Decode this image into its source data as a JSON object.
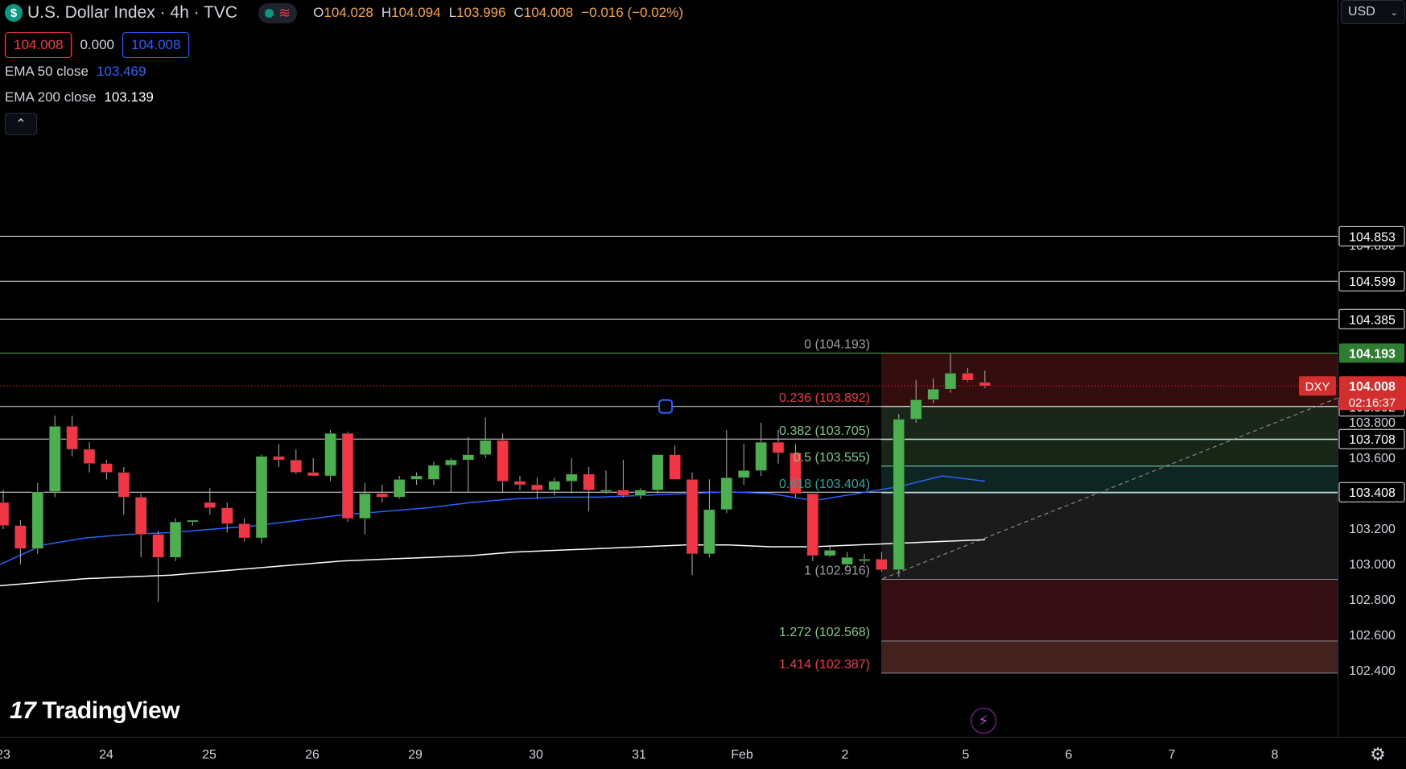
{
  "header": {
    "symbol_icon": "$",
    "title": "U.S. Dollar Index · 4h · TVC",
    "ohlc": {
      "o_label": "O",
      "o": "104.028",
      "h_label": "H",
      "h": "104.094",
      "l_label": "L",
      "l": "103.996",
      "c_label": "C",
      "c": "104.008",
      "change": "−0.016 (−0.02%)"
    }
  },
  "trade": {
    "sell": "104.008",
    "spread": "0.000",
    "buy": "104.008"
  },
  "indicators": [
    {
      "label": "EMA 50 close",
      "value": "103.469",
      "color": "#2962ff"
    },
    {
      "label": "EMA 200 close",
      "value": "103.139",
      "color": "#ffffff"
    }
  ],
  "collapse_icon": "chevron-up-icon",
  "currency": "USD",
  "logo_text": "TradingView",
  "symbol_tag": "DXY",
  "countdown": "02:16:37",
  "colors": {
    "up": "#4caf50",
    "down": "#f23645",
    "ema50": "#2962ff",
    "ema200": "#ffffff",
    "fib_red": "#f23645",
    "fib_green": "#81c784"
  },
  "chart_data": {
    "type": "candlestick",
    "title": "U.S. Dollar Index · 4h · TVC",
    "y_ticks": [
      "104.800",
      "104.600",
      "104.400",
      "104.200",
      "104.000",
      "103.800",
      "103.600",
      "103.400",
      "103.200",
      "103.000",
      "102.800",
      "102.600",
      "102.400"
    ],
    "ylim": [
      102.35,
      104.97
    ],
    "x_ticks": [
      "23",
      "24",
      "25",
      "26",
      "29",
      "30",
      "31",
      "Feb",
      "2",
      "5",
      "6",
      "7",
      "8"
    ],
    "current_price": {
      "value": 104.008,
      "label": "104.008"
    },
    "horizontal_levels": [
      {
        "value": 104.853,
        "label": "104.853"
      },
      {
        "value": 104.599,
        "label": "104.599"
      },
      {
        "value": 104.385,
        "label": "104.385"
      },
      {
        "value": 104.193,
        "label": "104.193"
      },
      {
        "value": 103.892,
        "label": "103.892"
      },
      {
        "value": 103.708,
        "label": "103.708"
      },
      {
        "value": 103.408,
        "label": "103.408"
      }
    ],
    "fibonacci": [
      {
        "ratio": "0",
        "price": 104.193,
        "label": "0 (104.193)"
      },
      {
        "ratio": "0.236",
        "price": 103.892,
        "label": "0.236 (103.892)"
      },
      {
        "ratio": "0.382",
        "price": 103.705,
        "label": "0.382 (103.705)"
      },
      {
        "ratio": "0.5",
        "price": 103.555,
        "label": "0.5 (103.555)"
      },
      {
        "ratio": "0.618",
        "price": 103.404,
        "label": "0.618 (103.404)"
      },
      {
        "ratio": "1",
        "price": 102.916,
        "label": "1 (102.916)"
      },
      {
        "ratio": "1.272",
        "price": 102.568,
        "label": "1.272 (102.568)"
      },
      {
        "ratio": "1.414",
        "price": 102.387,
        "label": "1.414 (102.387)"
      }
    ],
    "candles": [
      {
        "o": 103.35,
        "h": 103.42,
        "l": 103.2,
        "c": 103.22
      },
      {
        "o": 103.22,
        "h": 103.25,
        "l": 103.0,
        "c": 103.09
      },
      {
        "o": 103.09,
        "h": 103.46,
        "l": 103.06,
        "c": 103.41
      },
      {
        "o": 103.41,
        "h": 103.84,
        "l": 103.38,
        "c": 103.78
      },
      {
        "o": 103.78,
        "h": 103.84,
        "l": 103.61,
        "c": 103.65
      },
      {
        "o": 103.65,
        "h": 103.69,
        "l": 103.52,
        "c": 103.57
      },
      {
        "o": 103.57,
        "h": 103.59,
        "l": 103.48,
        "c": 103.52
      },
      {
        "o": 103.52,
        "h": 103.55,
        "l": 103.28,
        "c": 103.38
      },
      {
        "o": 103.38,
        "h": 103.4,
        "l": 103.04,
        "c": 103.17
      },
      {
        "o": 103.17,
        "h": 103.19,
        "l": 102.79,
        "c": 103.04
      },
      {
        "o": 103.04,
        "h": 103.26,
        "l": 103.02,
        "c": 103.24
      },
      {
        "o": 103.24,
        "h": 103.25,
        "l": 103.22,
        "c": 103.25
      },
      {
        "o": 103.35,
        "h": 103.43,
        "l": 103.28,
        "c": 103.32
      },
      {
        "o": 103.32,
        "h": 103.35,
        "l": 103.18,
        "c": 103.23
      },
      {
        "o": 103.23,
        "h": 103.26,
        "l": 103.13,
        "c": 103.15
      },
      {
        "o": 103.15,
        "h": 103.62,
        "l": 103.12,
        "c": 103.61
      },
      {
        "o": 103.61,
        "h": 103.68,
        "l": 103.55,
        "c": 103.59
      },
      {
        "o": 103.59,
        "h": 103.65,
        "l": 103.51,
        "c": 103.52
      },
      {
        "o": 103.52,
        "h": 103.6,
        "l": 103.5,
        "c": 103.5
      },
      {
        "o": 103.5,
        "h": 103.76,
        "l": 103.47,
        "c": 103.74
      },
      {
        "o": 103.74,
        "h": 103.75,
        "l": 103.24,
        "c": 103.26
      },
      {
        "o": 103.26,
        "h": 103.46,
        "l": 103.17,
        "c": 103.4
      },
      {
        "o": 103.4,
        "h": 103.45,
        "l": 103.35,
        "c": 103.38
      },
      {
        "o": 103.38,
        "h": 103.5,
        "l": 103.37,
        "c": 103.48
      },
      {
        "o": 103.48,
        "h": 103.52,
        "l": 103.45,
        "c": 103.5
      },
      {
        "o": 103.48,
        "h": 103.58,
        "l": 103.45,
        "c": 103.56
      },
      {
        "o": 103.56,
        "h": 103.6,
        "l": 103.41,
        "c": 103.59
      },
      {
        "o": 103.59,
        "h": 103.72,
        "l": 103.41,
        "c": 103.62
      },
      {
        "o": 103.62,
        "h": 103.83,
        "l": 103.6,
        "c": 103.7
      },
      {
        "o": 103.7,
        "h": 103.74,
        "l": 103.41,
        "c": 103.47
      },
      {
        "o": 103.47,
        "h": 103.5,
        "l": 103.42,
        "c": 103.45
      },
      {
        "o": 103.45,
        "h": 103.49,
        "l": 103.37,
        "c": 103.42
      },
      {
        "o": 103.42,
        "h": 103.49,
        "l": 103.39,
        "c": 103.47
      },
      {
        "o": 103.47,
        "h": 103.6,
        "l": 103.4,
        "c": 103.51
      },
      {
        "o": 103.51,
        "h": 103.55,
        "l": 103.3,
        "c": 103.42
      },
      {
        "o": 103.41,
        "h": 103.53,
        "l": 103.4,
        "c": 103.42
      },
      {
        "o": 103.42,
        "h": 103.59,
        "l": 103.38,
        "c": 103.39
      },
      {
        "o": 103.39,
        "h": 103.43,
        "l": 103.37,
        "c": 103.42
      },
      {
        "o": 103.42,
        "h": 103.62,
        "l": 103.4,
        "c": 103.62
      },
      {
        "o": 103.62,
        "h": 103.67,
        "l": 103.48,
        "c": 103.48
      },
      {
        "o": 103.48,
        "h": 103.52,
        "l": 102.94,
        "c": 103.06
      },
      {
        "o": 103.06,
        "h": 103.48,
        "l": 103.04,
        "c": 103.31
      },
      {
        "o": 103.31,
        "h": 103.76,
        "l": 103.29,
        "c": 103.49
      },
      {
        "o": 103.49,
        "h": 103.68,
        "l": 103.45,
        "c": 103.53
      },
      {
        "o": 103.53,
        "h": 103.8,
        "l": 103.5,
        "c": 103.69
      },
      {
        "o": 103.69,
        "h": 103.76,
        "l": 103.57,
        "c": 103.63
      },
      {
        "o": 103.63,
        "h": 103.68,
        "l": 103.38,
        "c": 103.4
      },
      {
        "o": 103.4,
        "h": 103.4,
        "l": 103.02,
        "c": 103.05
      },
      {
        "o": 103.05,
        "h": 103.1,
        "l": 103.04,
        "c": 103.08
      },
      {
        "o": 103.0,
        "h": 103.07,
        "l": 102.98,
        "c": 103.04
      },
      {
        "o": 103.02,
        "h": 103.06,
        "l": 103.0,
        "c": 103.03
      },
      {
        "o": 103.03,
        "h": 103.07,
        "l": 102.96,
        "c": 102.97
      },
      {
        "o": 102.97,
        "h": 103.85,
        "l": 102.93,
        "c": 103.82
      },
      {
        "o": 103.82,
        "h": 104.04,
        "l": 103.8,
        "c": 103.93
      },
      {
        "o": 103.93,
        "h": 104.05,
        "l": 103.91,
        "c": 103.99
      },
      {
        "o": 103.99,
        "h": 104.19,
        "l": 103.97,
        "c": 104.08
      },
      {
        "o": 104.08,
        "h": 104.11,
        "l": 104.03,
        "c": 104.04
      },
      {
        "o": 104.028,
        "h": 104.094,
        "l": 103.996,
        "c": 104.008
      }
    ],
    "series": [
      {
        "name": "EMA 50 close",
        "values": [
          103.0,
          103.11,
          103.15,
          103.17,
          103.18,
          103.2,
          103.22,
          103.25,
          103.28,
          103.3,
          103.32,
          103.35,
          103.37,
          103.38,
          103.38,
          103.39,
          103.4,
          103.41,
          103.4,
          103.36,
          103.4,
          103.44,
          103.5,
          103.47
        ]
      },
      {
        "name": "EMA 200 close",
        "values": [
          102.88,
          102.9,
          102.92,
          102.93,
          102.94,
          102.96,
          102.98,
          103.0,
          103.02,
          103.03,
          103.04,
          103.05,
          103.07,
          103.08,
          103.09,
          103.1,
          103.11,
          103.11,
          103.1,
          103.1,
          103.11,
          103.12,
          103.13,
          103.14
        ]
      }
    ]
  }
}
